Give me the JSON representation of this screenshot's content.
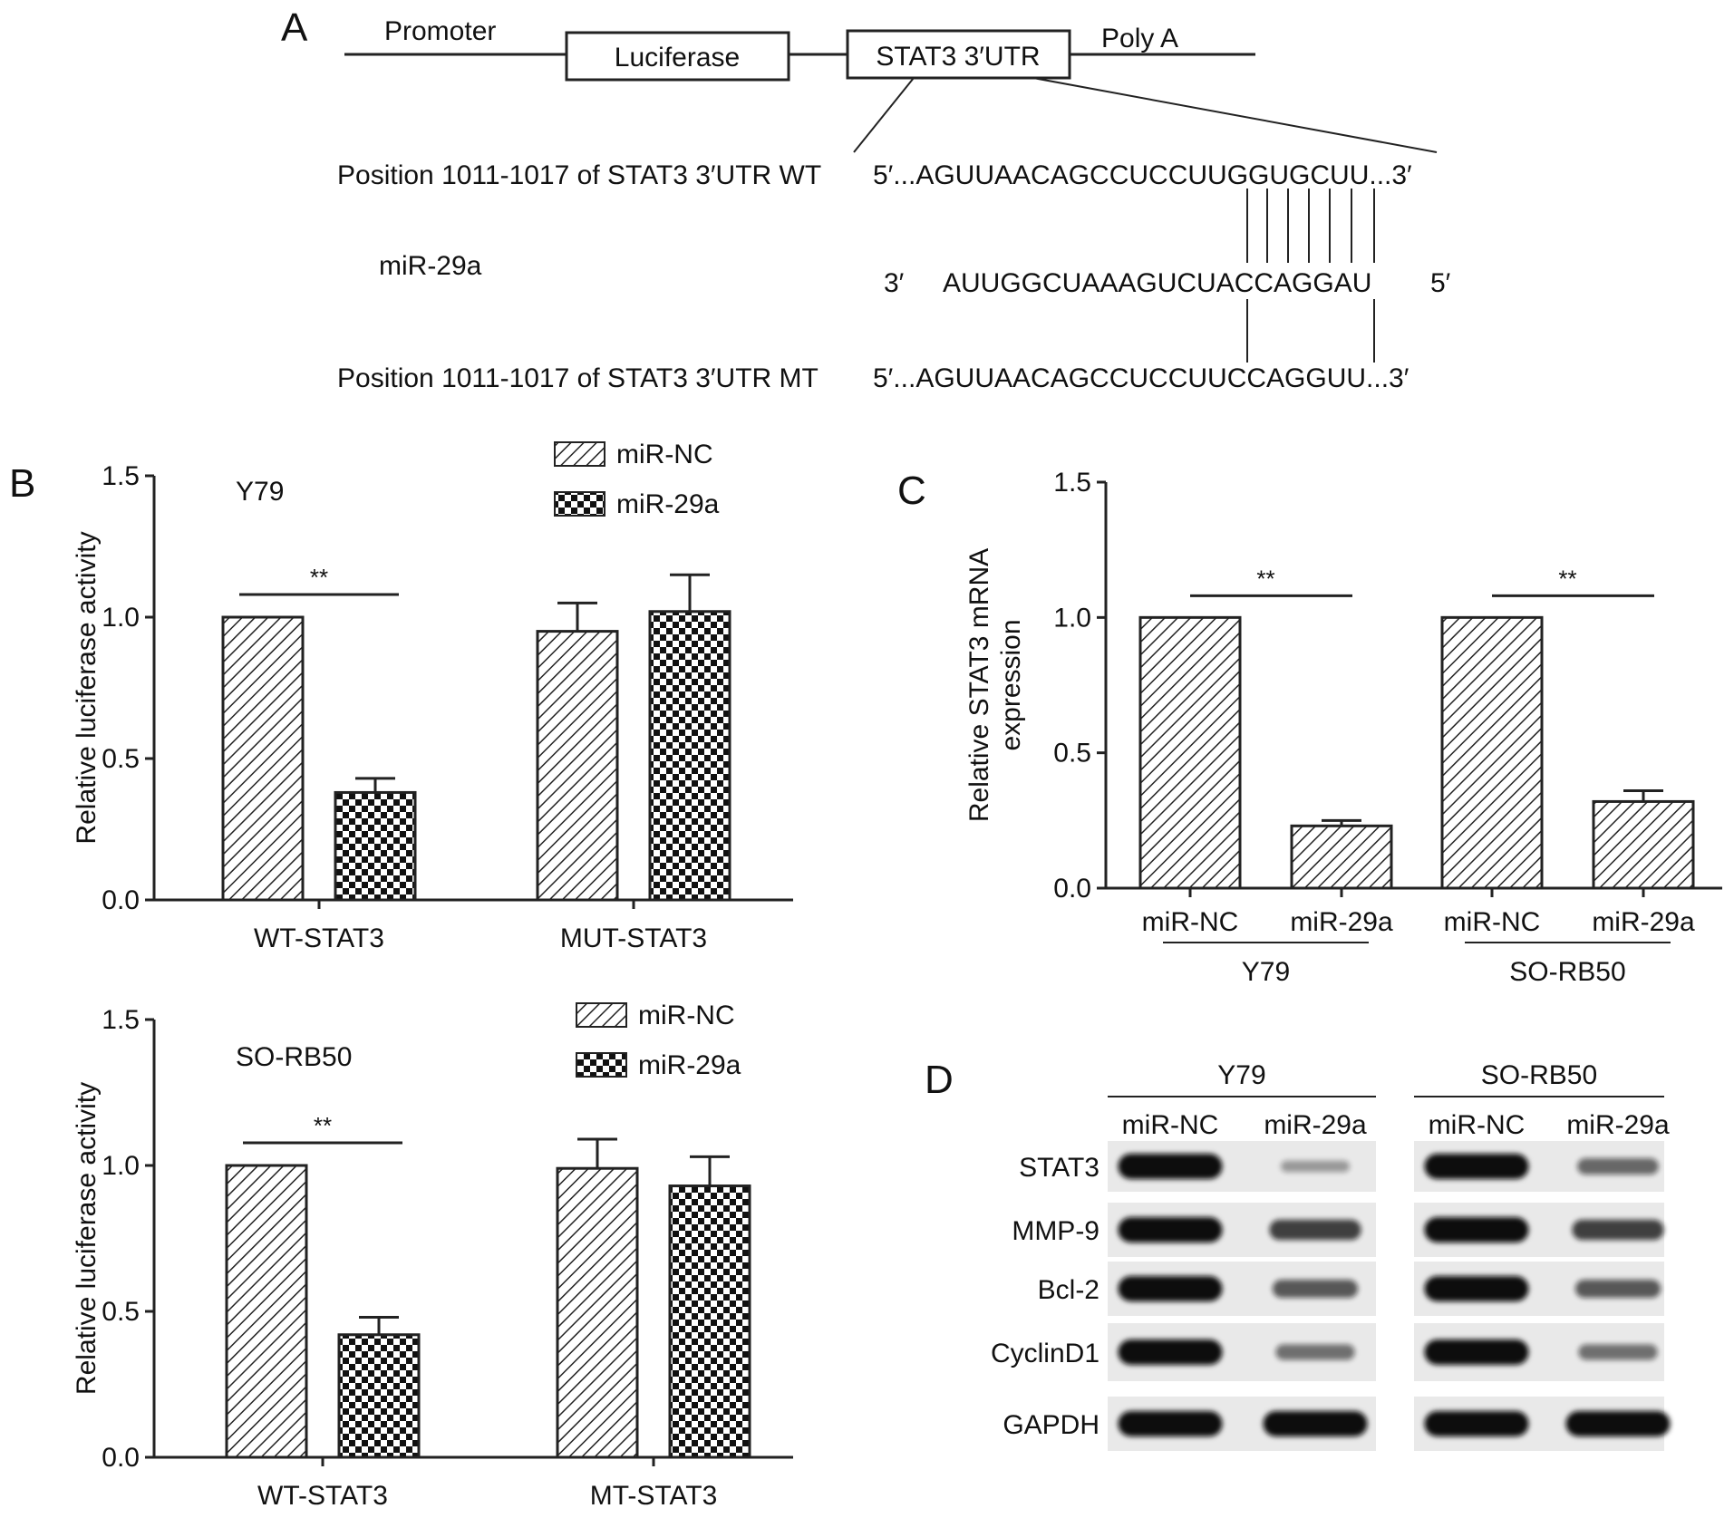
{
  "panel_a": {
    "label": "A",
    "construct": {
      "promoter": "Promoter",
      "luciferase": "Luciferase",
      "utr": "STAT3 3′UTR",
      "polya": "Poly A"
    },
    "wt": {
      "name": "Position 1011-1017 of STAT3 3′UTR WT",
      "five": "5′...",
      "prefix": "AGUUAACAGCCUCCUU",
      "site": "GGUGCU",
      "suffix": "U...3′"
    },
    "mir": {
      "name": "miR-29a",
      "three": "3′",
      "seq": "AUUGGCUAAAGUCUACCAGGAU",
      "five": "5′"
    },
    "mt": {
      "name": "Position 1011-1017 of STAT3 3′UTR MT",
      "five": "5′...",
      "prefix": "AGUUAACAGCCUCCUU",
      "site": "CCAGGU",
      "suffix": "U...3′"
    }
  },
  "panel_b": {
    "label": "B",
    "chart_data": [
      {
        "type": "bar",
        "cell_line": "Y79",
        "ylabel": "Relative luciferase activity",
        "ylim": [
          0,
          1.5
        ],
        "yticks": [
          "0.0",
          "0.5",
          "1.0",
          "1.5"
        ],
        "categories": [
          "WT-STAT3",
          "MUT-STAT3"
        ],
        "series": [
          {
            "name": "miR-NC",
            "values": [
              1.0,
              0.95
            ],
            "errors": [
              0,
              0.1
            ]
          },
          {
            "name": "miR-29a",
            "values": [
              0.38,
              1.02
            ],
            "errors": [
              0.05,
              0.13
            ]
          }
        ],
        "significance": [
          {
            "category": "WT-STAT3",
            "label": "**"
          }
        ],
        "legend": "top-right"
      },
      {
        "type": "bar",
        "cell_line": "SO-RB50",
        "ylabel": "Relative luciferase activity",
        "ylim": [
          0,
          1.5
        ],
        "yticks": [
          "0.0",
          "0.5",
          "1.0",
          "1.5"
        ],
        "categories": [
          "WT-STAT3",
          "MT-STAT3"
        ],
        "series": [
          {
            "name": "miR-NC",
            "values": [
              1.0,
              0.99
            ],
            "errors": [
              0,
              0.1
            ]
          },
          {
            "name": "miR-29a",
            "values": [
              0.42,
              0.93
            ],
            "errors": [
              0.06,
              0.1
            ]
          }
        ],
        "significance": [
          {
            "category": "WT-STAT3",
            "label": "**"
          }
        ],
        "legend": "top-right"
      }
    ]
  },
  "panel_c": {
    "label": "C",
    "chart_data": {
      "type": "bar",
      "ylabel_line1": "Relative STAT3 mRNA",
      "ylabel_line2": "expression",
      "ylim": [
        0,
        1.5
      ],
      "yticks": [
        "0.0",
        "0.5",
        "1.0",
        "1.5"
      ],
      "categories": [
        "miR-NC",
        "miR-29a",
        "miR-NC",
        "miR-29a"
      ],
      "groups": [
        "Y79",
        "SO-RB50"
      ],
      "values": [
        1.0,
        0.23,
        1.0,
        0.32
      ],
      "errors": [
        0,
        0.02,
        0,
        0.04
      ],
      "significance": [
        "**",
        "**"
      ]
    }
  },
  "panel_d": {
    "label": "D",
    "groups": [
      "Y79",
      "SO-RB50"
    ],
    "lanes": [
      "miR-NC",
      "miR-29a",
      "miR-NC",
      "miR-29a"
    ],
    "rows": [
      {
        "name": "STAT3",
        "intensity": [
          1.0,
          0.15,
          1.0,
          0.45
        ]
      },
      {
        "name": "MMP-9",
        "intensity": [
          1.0,
          0.7,
          1.0,
          0.7
        ]
      },
      {
        "name": "Bcl-2",
        "intensity": [
          1.0,
          0.55,
          1.0,
          0.55
        ]
      },
      {
        "name": "CyclinD1",
        "intensity": [
          1.0,
          0.4,
          1.0,
          0.4
        ]
      },
      {
        "name": "GAPDH",
        "intensity": [
          1.0,
          1.0,
          1.0,
          1.0
        ]
      }
    ]
  }
}
